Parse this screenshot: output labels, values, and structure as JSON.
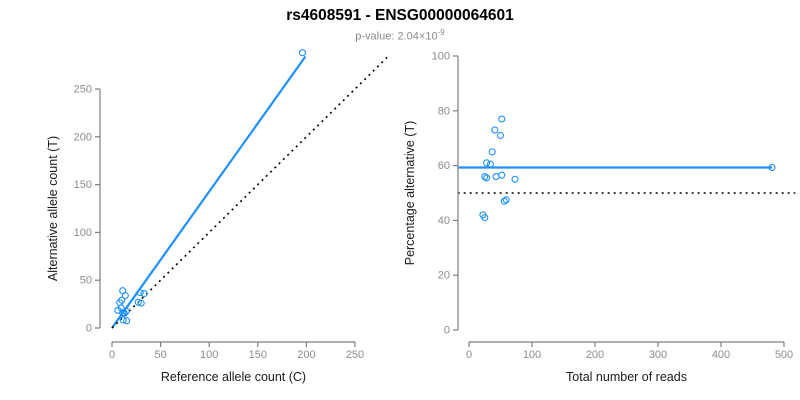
{
  "header": {
    "title": "rs4608591 - ENSG00000064601",
    "subtitle_prefix": "p-value: ",
    "subtitle_mantissa": "2.04",
    "subtitle_times": "×10",
    "subtitle_exponent": "-9",
    "subtitle_full": "p-value: 2.04×10^-9"
  },
  "colors": {
    "accent_blue": "#1E90FF",
    "dotted_line": "#000000",
    "axis_gray": "#7f7f7f",
    "tick_label_gray": "#8c8c8c",
    "axis_title_color": "#1a1a1a",
    "background": "#ffffff"
  },
  "chart_data": [
    {
      "name": "allele-counts-scatter",
      "type": "scatter",
      "title": "",
      "xlabel": "Reference allele count (C)",
      "ylabel": "Alternative allele count (T)",
      "xticks": [
        0,
        50,
        100,
        150,
        200,
        250
      ],
      "yticks": [
        0,
        50,
        100,
        150,
        200,
        250
      ],
      "xlim": [
        0,
        285
      ],
      "ylim": [
        0,
        292
      ],
      "grid": false,
      "legend": null,
      "marker": "open-circle",
      "points": [
        [
          11,
          39
        ],
        [
          13.7,
          34
        ],
        [
          29,
          37
        ],
        [
          33,
          36
        ],
        [
          8,
          26.5
        ],
        [
          10,
          29
        ],
        [
          27,
          27
        ],
        [
          30,
          26
        ],
        [
          9.5,
          21
        ],
        [
          6,
          18.5
        ],
        [
          14.7,
          17.5
        ],
        [
          11,
          16
        ],
        [
          12.6,
          15.5
        ],
        [
          11.6,
          8.4
        ],
        [
          15.1,
          7.6
        ],
        [
          196,
          288
        ]
      ],
      "lines": [
        {
          "name": "regression-line",
          "style": "solid",
          "color": "#1E90FF",
          "x1": 0,
          "y1": 0,
          "x2": 199,
          "y2": 284
        },
        {
          "name": "identity-line",
          "style": "dotted",
          "color": "#000000",
          "x1": 0,
          "y1": 0,
          "x2": 283,
          "y2": 283
        }
      ]
    },
    {
      "name": "percentage-by-coverage-scatter",
      "type": "scatter",
      "title": "",
      "xlabel": "Total number of reads",
      "ylabel": "Percentage alternative (T)",
      "xticks": [
        0,
        100,
        200,
        300,
        400,
        500
      ],
      "yticks": [
        0,
        20,
        40,
        60,
        80,
        100
      ],
      "xlim": [
        -18,
        518
      ],
      "ylim": [
        0,
        100
      ],
      "grid": false,
      "legend": null,
      "marker": "open-circle",
      "points": [
        [
          52,
          77
        ],
        [
          41,
          73
        ],
        [
          50,
          71
        ],
        [
          37,
          65
        ],
        [
          28,
          61
        ],
        [
          34,
          60.5
        ],
        [
          25,
          56
        ],
        [
          28,
          55.5
        ],
        [
          43,
          56
        ],
        [
          52,
          56.5
        ],
        [
          73,
          55
        ],
        [
          56,
          47
        ],
        [
          59,
          47.5
        ],
        [
          22,
          42
        ],
        [
          25,
          41
        ],
        [
          481,
          59.3
        ]
      ],
      "lines": [
        {
          "name": "mean-percentage-line",
          "style": "solid",
          "color": "#1E90FF",
          "x1": -18,
          "y1": 59.3,
          "x2": 481,
          "y2": 59.3
        },
        {
          "name": "expected-50-line",
          "style": "dotted",
          "color": "#000000",
          "x1": -18,
          "y1": 50,
          "x2": 518,
          "y2": 50
        }
      ]
    }
  ]
}
